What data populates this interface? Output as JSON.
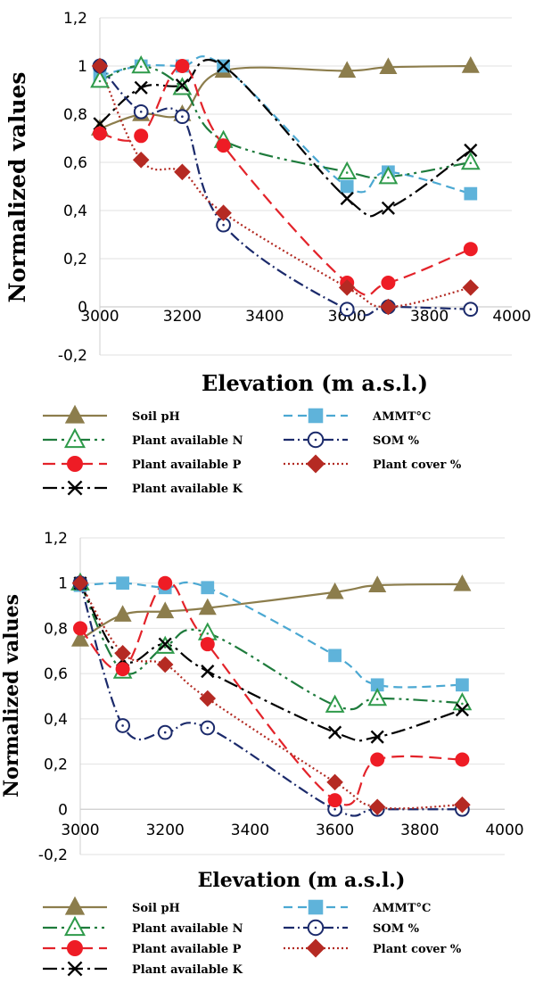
{
  "chart_data": [
    {
      "type": "line",
      "title": "",
      "xlabel": "Elevation (m a.s.l.)",
      "ylabel": "Normalized values",
      "xlim": [
        3000,
        4000
      ],
      "ylim": [
        -0.2,
        1.2
      ],
      "xticks": [
        "3000",
        "3200",
        "3400",
        "3600",
        "3800",
        "4000"
      ],
      "yticks": [
        "-0,2",
        "0",
        "0,2",
        "0,4",
        "0,6",
        "0,8",
        "1",
        "1,2"
      ],
      "grid": "horizontal",
      "legend_position": "bottom",
      "x": [
        3000,
        3100,
        3200,
        3300,
        3600,
        3700,
        3900
      ],
      "series": [
        {
          "name": "Soil pH",
          "values": [
            0.74,
            0.8,
            0.8,
            0.98,
            0.98,
            0.995,
            1.0
          ]
        },
        {
          "name": "AMMT°C",
          "values": [
            0.96,
            1.0,
            1.0,
            1.0,
            0.5,
            0.56,
            0.47
          ]
        },
        {
          "name": "Plant available N",
          "values": [
            0.94,
            1.0,
            0.91,
            0.69,
            0.56,
            0.54,
            0.6
          ]
        },
        {
          "name": "SOM %",
          "values": [
            1.0,
            0.81,
            0.79,
            0.34,
            -0.01,
            0.0,
            -0.01
          ]
        },
        {
          "name": "Plant available P",
          "values": [
            0.72,
            0.71,
            1.0,
            0.67,
            0.1,
            0.1,
            0.24
          ]
        },
        {
          "name": "Plant cover %",
          "values": [
            1.0,
            0.61,
            0.56,
            0.39,
            0.08,
            0.0,
            0.08
          ]
        },
        {
          "name": "Plant available K",
          "values": [
            0.76,
            0.91,
            0.92,
            1.0,
            0.45,
            0.41,
            0.65
          ]
        }
      ]
    },
    {
      "type": "line",
      "title": "",
      "xlabel": "Elevation (m a.s.l.)",
      "ylabel": "Normalized values",
      "xlim": [
        3000,
        4000
      ],
      "ylim": [
        -0.2,
        1.2
      ],
      "xticks": [
        "3000",
        "3200",
        "3400",
        "3600",
        "3800",
        "4000"
      ],
      "yticks": [
        "-0,2",
        "0",
        "0,2",
        "0,4",
        "0,6",
        "0,8",
        "1",
        "1,2"
      ],
      "grid": "horizontal",
      "legend_position": "bottom",
      "x": [
        3000,
        3100,
        3200,
        3300,
        3600,
        3700,
        3900
      ],
      "series": [
        {
          "name": "Soil pH",
          "values": [
            0.75,
            0.86,
            0.875,
            0.89,
            0.96,
            0.99,
            0.995
          ]
        },
        {
          "name": "AMMT°C",
          "values": [
            0.99,
            1.0,
            0.98,
            0.98,
            0.68,
            0.55,
            0.55
          ]
        },
        {
          "name": "Plant available N",
          "values": [
            1.0,
            0.61,
            0.72,
            0.78,
            0.46,
            0.49,
            0.47
          ]
        },
        {
          "name": "SOM %",
          "values": [
            1.0,
            0.37,
            0.34,
            0.36,
            0.0,
            0.0,
            0.0
          ]
        },
        {
          "name": "Plant available P",
          "values": [
            0.8,
            0.62,
            1.0,
            0.73,
            0.04,
            0.22,
            0.22
          ]
        },
        {
          "name": "Plant cover %",
          "values": [
            1.0,
            0.69,
            0.64,
            0.49,
            0.12,
            0.01,
            0.02
          ]
        },
        {
          "name": "Plant available K",
          "values": [
            1.0,
            0.66,
            0.73,
            0.61,
            0.34,
            0.32,
            0.44
          ]
        }
      ]
    }
  ],
  "styles": {
    "Soil pH": {
      "color": "#8C7D4C",
      "marker": "triangle",
      "filled": true,
      "dash": "",
      "marker_color": "#8C7D4C"
    },
    "AMMT°C": {
      "color": "#4BA8D2",
      "marker": "square",
      "filled": true,
      "dash": "10,6",
      "marker_color": "#5FB3DA"
    },
    "Plant available N": {
      "color": "#1E7B3C",
      "marker": "triangle",
      "filled": false,
      "dash": "16,5,3,5,3,5",
      "marker_color": "#2E9A4A"
    },
    "SOM %": {
      "color": "#1B2A6B",
      "marker": "circle",
      "filled": false,
      "dash": "12,4,2,4",
      "marker_color": "#1B2A6B"
    },
    "Plant available P": {
      "color": "#E3232A",
      "marker": "circle",
      "filled": true,
      "dash": "14,7",
      "marker_color": "#EE1C25"
    },
    "Plant cover %": {
      "color": "#B22A22",
      "marker": "diamond",
      "filled": true,
      "dash": "2,3",
      "marker_color": "#B52A23"
    },
    "Plant available K": {
      "color": "#000000",
      "marker": "x",
      "filled": false,
      "dash": "16,5,3,5",
      "marker_color": "#000000"
    }
  },
  "legend_layout": [
    [
      "Soil pH",
      "AMMT°C"
    ],
    [
      "Plant available N",
      "SOM %"
    ],
    [
      "Plant available P",
      "Plant cover %"
    ],
    [
      "Plant available K"
    ]
  ]
}
